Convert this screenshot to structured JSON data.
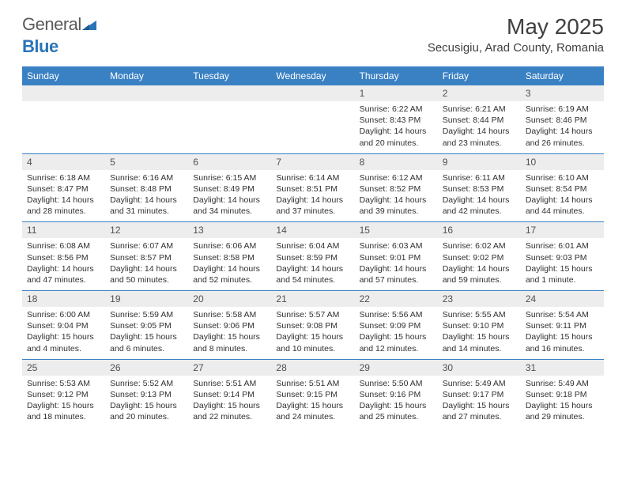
{
  "logo": {
    "text1": "General",
    "text2": "Blue"
  },
  "title": "May 2025",
  "location": "Secusigiu, Arad County, Romania",
  "colors": {
    "header_bg": "#3a81c4",
    "header_text": "#ffffff",
    "daynum_bg": "#ededed",
    "border": "#3a81c4",
    "logo_gray": "#5a5a5a",
    "logo_blue": "#2b74b8"
  },
  "dayNames": [
    "Sunday",
    "Monday",
    "Tuesday",
    "Wednesday",
    "Thursday",
    "Friday",
    "Saturday"
  ],
  "weeks": [
    [
      {
        "day": "",
        "sunrise": "",
        "sunset": "",
        "daylight": ""
      },
      {
        "day": "",
        "sunrise": "",
        "sunset": "",
        "daylight": ""
      },
      {
        "day": "",
        "sunrise": "",
        "sunset": "",
        "daylight": ""
      },
      {
        "day": "",
        "sunrise": "",
        "sunset": "",
        "daylight": ""
      },
      {
        "day": "1",
        "sunrise": "Sunrise: 6:22 AM",
        "sunset": "Sunset: 8:43 PM",
        "daylight": "Daylight: 14 hours and 20 minutes."
      },
      {
        "day": "2",
        "sunrise": "Sunrise: 6:21 AM",
        "sunset": "Sunset: 8:44 PM",
        "daylight": "Daylight: 14 hours and 23 minutes."
      },
      {
        "day": "3",
        "sunrise": "Sunrise: 6:19 AM",
        "sunset": "Sunset: 8:46 PM",
        "daylight": "Daylight: 14 hours and 26 minutes."
      }
    ],
    [
      {
        "day": "4",
        "sunrise": "Sunrise: 6:18 AM",
        "sunset": "Sunset: 8:47 PM",
        "daylight": "Daylight: 14 hours and 28 minutes."
      },
      {
        "day": "5",
        "sunrise": "Sunrise: 6:16 AM",
        "sunset": "Sunset: 8:48 PM",
        "daylight": "Daylight: 14 hours and 31 minutes."
      },
      {
        "day": "6",
        "sunrise": "Sunrise: 6:15 AM",
        "sunset": "Sunset: 8:49 PM",
        "daylight": "Daylight: 14 hours and 34 minutes."
      },
      {
        "day": "7",
        "sunrise": "Sunrise: 6:14 AM",
        "sunset": "Sunset: 8:51 PM",
        "daylight": "Daylight: 14 hours and 37 minutes."
      },
      {
        "day": "8",
        "sunrise": "Sunrise: 6:12 AM",
        "sunset": "Sunset: 8:52 PM",
        "daylight": "Daylight: 14 hours and 39 minutes."
      },
      {
        "day": "9",
        "sunrise": "Sunrise: 6:11 AM",
        "sunset": "Sunset: 8:53 PM",
        "daylight": "Daylight: 14 hours and 42 minutes."
      },
      {
        "day": "10",
        "sunrise": "Sunrise: 6:10 AM",
        "sunset": "Sunset: 8:54 PM",
        "daylight": "Daylight: 14 hours and 44 minutes."
      }
    ],
    [
      {
        "day": "11",
        "sunrise": "Sunrise: 6:08 AM",
        "sunset": "Sunset: 8:56 PM",
        "daylight": "Daylight: 14 hours and 47 minutes."
      },
      {
        "day": "12",
        "sunrise": "Sunrise: 6:07 AM",
        "sunset": "Sunset: 8:57 PM",
        "daylight": "Daylight: 14 hours and 50 minutes."
      },
      {
        "day": "13",
        "sunrise": "Sunrise: 6:06 AM",
        "sunset": "Sunset: 8:58 PM",
        "daylight": "Daylight: 14 hours and 52 minutes."
      },
      {
        "day": "14",
        "sunrise": "Sunrise: 6:04 AM",
        "sunset": "Sunset: 8:59 PM",
        "daylight": "Daylight: 14 hours and 54 minutes."
      },
      {
        "day": "15",
        "sunrise": "Sunrise: 6:03 AM",
        "sunset": "Sunset: 9:01 PM",
        "daylight": "Daylight: 14 hours and 57 minutes."
      },
      {
        "day": "16",
        "sunrise": "Sunrise: 6:02 AM",
        "sunset": "Sunset: 9:02 PM",
        "daylight": "Daylight: 14 hours and 59 minutes."
      },
      {
        "day": "17",
        "sunrise": "Sunrise: 6:01 AM",
        "sunset": "Sunset: 9:03 PM",
        "daylight": "Daylight: 15 hours and 1 minute."
      }
    ],
    [
      {
        "day": "18",
        "sunrise": "Sunrise: 6:00 AM",
        "sunset": "Sunset: 9:04 PM",
        "daylight": "Daylight: 15 hours and 4 minutes."
      },
      {
        "day": "19",
        "sunrise": "Sunrise: 5:59 AM",
        "sunset": "Sunset: 9:05 PM",
        "daylight": "Daylight: 15 hours and 6 minutes."
      },
      {
        "day": "20",
        "sunrise": "Sunrise: 5:58 AM",
        "sunset": "Sunset: 9:06 PM",
        "daylight": "Daylight: 15 hours and 8 minutes."
      },
      {
        "day": "21",
        "sunrise": "Sunrise: 5:57 AM",
        "sunset": "Sunset: 9:08 PM",
        "daylight": "Daylight: 15 hours and 10 minutes."
      },
      {
        "day": "22",
        "sunrise": "Sunrise: 5:56 AM",
        "sunset": "Sunset: 9:09 PM",
        "daylight": "Daylight: 15 hours and 12 minutes."
      },
      {
        "day": "23",
        "sunrise": "Sunrise: 5:55 AM",
        "sunset": "Sunset: 9:10 PM",
        "daylight": "Daylight: 15 hours and 14 minutes."
      },
      {
        "day": "24",
        "sunrise": "Sunrise: 5:54 AM",
        "sunset": "Sunset: 9:11 PM",
        "daylight": "Daylight: 15 hours and 16 minutes."
      }
    ],
    [
      {
        "day": "25",
        "sunrise": "Sunrise: 5:53 AM",
        "sunset": "Sunset: 9:12 PM",
        "daylight": "Daylight: 15 hours and 18 minutes."
      },
      {
        "day": "26",
        "sunrise": "Sunrise: 5:52 AM",
        "sunset": "Sunset: 9:13 PM",
        "daylight": "Daylight: 15 hours and 20 minutes."
      },
      {
        "day": "27",
        "sunrise": "Sunrise: 5:51 AM",
        "sunset": "Sunset: 9:14 PM",
        "daylight": "Daylight: 15 hours and 22 minutes."
      },
      {
        "day": "28",
        "sunrise": "Sunrise: 5:51 AM",
        "sunset": "Sunset: 9:15 PM",
        "daylight": "Daylight: 15 hours and 24 minutes."
      },
      {
        "day": "29",
        "sunrise": "Sunrise: 5:50 AM",
        "sunset": "Sunset: 9:16 PM",
        "daylight": "Daylight: 15 hours and 25 minutes."
      },
      {
        "day": "30",
        "sunrise": "Sunrise: 5:49 AM",
        "sunset": "Sunset: 9:17 PM",
        "daylight": "Daylight: 15 hours and 27 minutes."
      },
      {
        "day": "31",
        "sunrise": "Sunrise: 5:49 AM",
        "sunset": "Sunset: 9:18 PM",
        "daylight": "Daylight: 15 hours and 29 minutes."
      }
    ]
  ]
}
